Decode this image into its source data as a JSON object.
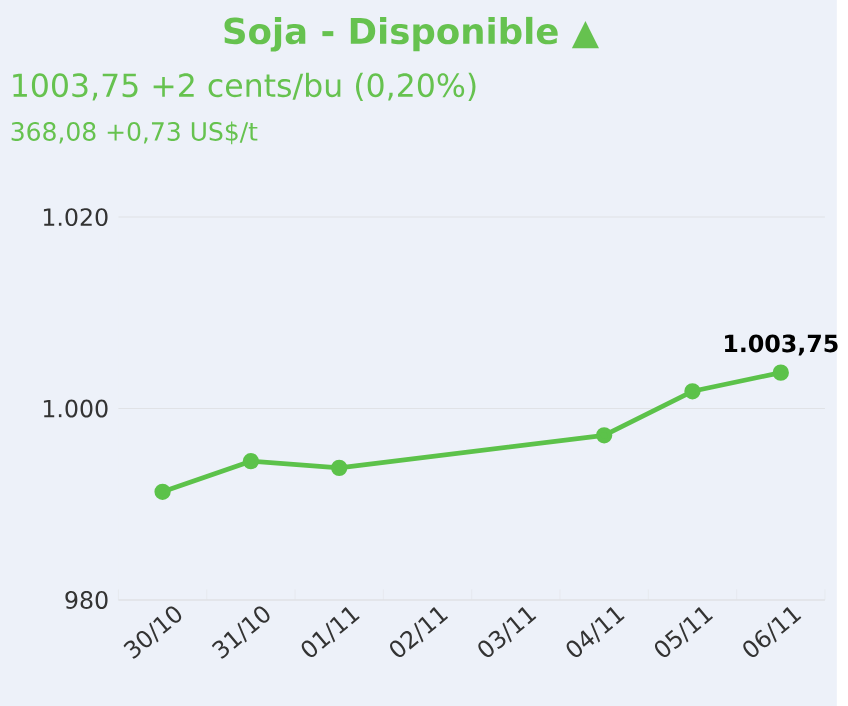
{
  "chart_data": {
    "type": "line",
    "title": "Soja - Disponible ▲",
    "subtitle": "1003,75 +2 cents/bu (0,20%)",
    "annotations": [
      "368,08 +0,73 US$/t"
    ],
    "categories": [
      "30/10",
      "31/10",
      "01/11",
      "02/11",
      "03/11",
      "04/11",
      "05/11",
      "06/11"
    ],
    "series": [
      {
        "color": "#5cc24a",
        "values": [
          991.3,
          994.5,
          993.8,
          null,
          null,
          997.2,
          1001.8,
          1003.75
        ],
        "value_labels": [
          null,
          null,
          null,
          null,
          null,
          null,
          null,
          "1.003,75"
        ]
      }
    ],
    "ylim": [
      980,
      1020
    ],
    "yticks": [
      {
        "value": 980,
        "label": "980"
      },
      {
        "value": 1000,
        "label": "1.000"
      },
      {
        "value": 1020,
        "label": "1.020"
      }
    ],
    "grid": "y",
    "legend": false,
    "marker": "circle",
    "line_style": "solid"
  }
}
